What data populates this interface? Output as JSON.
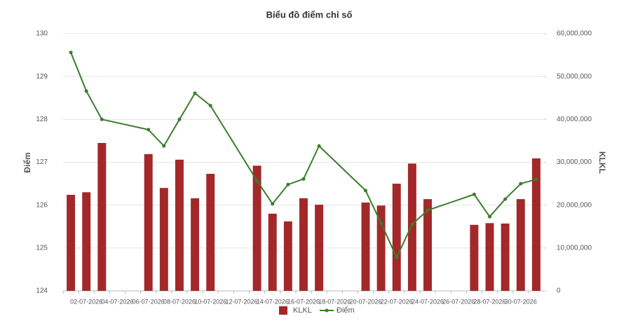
{
  "chart_data": {
    "type": "combo",
    "title": "Biểu đồ điểm chỉ số",
    "y_label": "Điểm",
    "y2_label": "KLKL",
    "categories": [
      null,
      "02-07-2026",
      null,
      "04-07-2026",
      null,
      "06-07-2026",
      null,
      "08-07-2026",
      null,
      "10-07-2026",
      null,
      "12-07-2026",
      null,
      "14-07-2026",
      null,
      "16-07-2026",
      null,
      "18-07-2026",
      null,
      "20-07-2026",
      null,
      "22-07-2026",
      null,
      "24-07-2026",
      null,
      "26-07-2026",
      null,
      "28-07-2026",
      null,
      "30-07-2026",
      null
    ],
    "series": [
      {
        "name": "KLKL",
        "type": "bar",
        "axis": "y2",
        "color": "#a3282a",
        "values": [
          22400000,
          23000000,
          34500000,
          null,
          null,
          31900000,
          24000000,
          30600000,
          21600000,
          27300000,
          null,
          null,
          29200000,
          18000000,
          16200000,
          21600000,
          20100000,
          null,
          null,
          20600000,
          19900000,
          25000000,
          29700000,
          21400000,
          null,
          null,
          15400000,
          15800000,
          15700000,
          21400000,
          30900000
        ]
      },
      {
        "name": "Điểm",
        "type": "line",
        "color": "#3a7d2c",
        "values": [
          129.56,
          128.66,
          128.0,
          null,
          null,
          127.76,
          127.38,
          128.0,
          128.61,
          128.32,
          null,
          null,
          126.57,
          126.03,
          126.48,
          126.61,
          127.38,
          null,
          null,
          126.34,
          125.58,
          124.78,
          125.55,
          125.88,
          null,
          null,
          126.25,
          125.73,
          126.14,
          126.5,
          126.6
        ]
      }
    ],
    "ylim": [
      124,
      130
    ],
    "yticks": [
      124,
      125,
      126,
      127,
      128,
      129,
      130
    ],
    "y2lim": [
      0,
      60000000
    ],
    "y2ticks": [
      0,
      {
        "value": 10000000,
        "label": "10,000,000"
      },
      {
        "value": 20000000,
        "label": "20,000,000"
      },
      {
        "value": 30000000,
        "label": "30,000,000"
      },
      {
        "value": 40000000,
        "label": "40,000,000"
      },
      {
        "value": 50000000,
        "label": "50,000,000"
      },
      {
        "value": 60000000,
        "label": "60,000,000"
      }
    ],
    "grid": true,
    "legend": "bottom"
  }
}
